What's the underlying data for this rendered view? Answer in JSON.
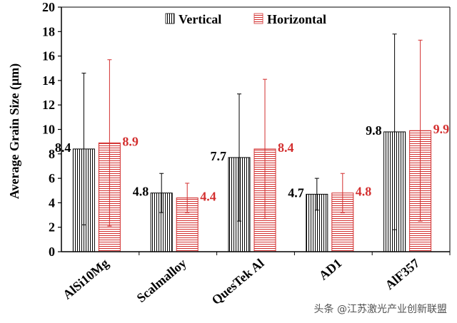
{
  "chart_data": {
    "type": "bar",
    "title": "",
    "xlabel": "",
    "ylabel": "Average Grain Size (μm)",
    "ylim": [
      0,
      20
    ],
    "yticks": [
      0,
      2,
      4,
      6,
      8,
      10,
      12,
      14,
      16,
      18,
      20
    ],
    "categories": [
      "AlSi10Mg",
      "Scalmalloy",
      "QuesTek Al",
      "AD1",
      "AlF357"
    ],
    "series": [
      {
        "name": "Vertical",
        "color": "#000000",
        "pattern": "vertical-stripes",
        "values": [
          8.4,
          4.8,
          7.7,
          4.7,
          9.8
        ],
        "labels": [
          "8.4",
          "4.8",
          "7.7",
          "4.7",
          "9.8"
        ],
        "error": [
          6.2,
          1.6,
          5.2,
          1.3,
          8.0
        ]
      },
      {
        "name": "Horizontal",
        "color": "#d32f2f",
        "pattern": "horizontal-stripes",
        "values": [
          8.9,
          4.4,
          8.4,
          4.8,
          9.9
        ],
        "labels": [
          "8.9",
          "4.4",
          "8.4",
          "4.8",
          "9.9"
        ],
        "error": [
          6.8,
          1.2,
          5.7,
          1.6,
          7.4
        ]
      }
    ],
    "legend_position": "top"
  },
  "watermark": "头条 @江苏激光产业创新联盟"
}
